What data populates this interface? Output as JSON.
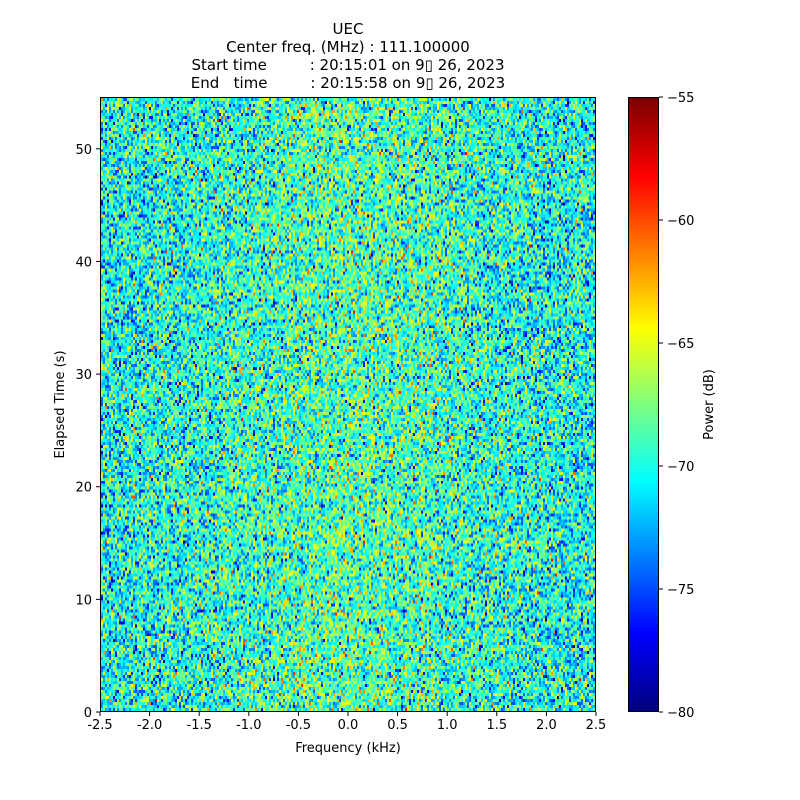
{
  "chart_data": {
    "type": "heatmap",
    "title_lines": [
      "UEC",
      "Center freq. (MHz) : 111.100000",
      "Start time         : 20:15:01 on 9▯ 26, 2023",
      "End   time         : 20:15:58 on 9▯ 26, 2023"
    ],
    "xlabel": "Frequency (kHz)",
    "ylabel": "Elapsed Time (s)",
    "xlim": [
      -2.5,
      2.5
    ],
    "ylim": [
      0,
      54.6
    ],
    "xticks": [
      "-2.5",
      "-2.0",
      "-1.5",
      "-1.0",
      "-0.5",
      "0.0",
      "0.5",
      "1.0",
      "1.5",
      "2.0",
      "2.5"
    ],
    "xtick_values": [
      -2.5,
      -2.0,
      -1.5,
      -1.0,
      -0.5,
      0.0,
      0.5,
      1.0,
      1.5,
      2.0,
      2.5
    ],
    "yticks": [
      "0",
      "10",
      "20",
      "30",
      "40",
      "50"
    ],
    "ytick_values": [
      0,
      10,
      20,
      30,
      40,
      50
    ],
    "colormap": "jet",
    "colorbar": {
      "label": "Power (dB)",
      "range": [
        -80,
        -55
      ],
      "ticks": [
        "−80",
        "−75",
        "−70",
        "−65",
        "−60",
        "−55"
      ],
      "tick_values": [
        -80,
        -75,
        -70,
        -65,
        -60,
        -55
      ]
    },
    "grid": {
      "freq_bins": 247,
      "time_bins": 205
    },
    "noise": {
      "mean_db": -70.5,
      "std_db": 3.2,
      "center_boost_db": 1.8
    }
  }
}
